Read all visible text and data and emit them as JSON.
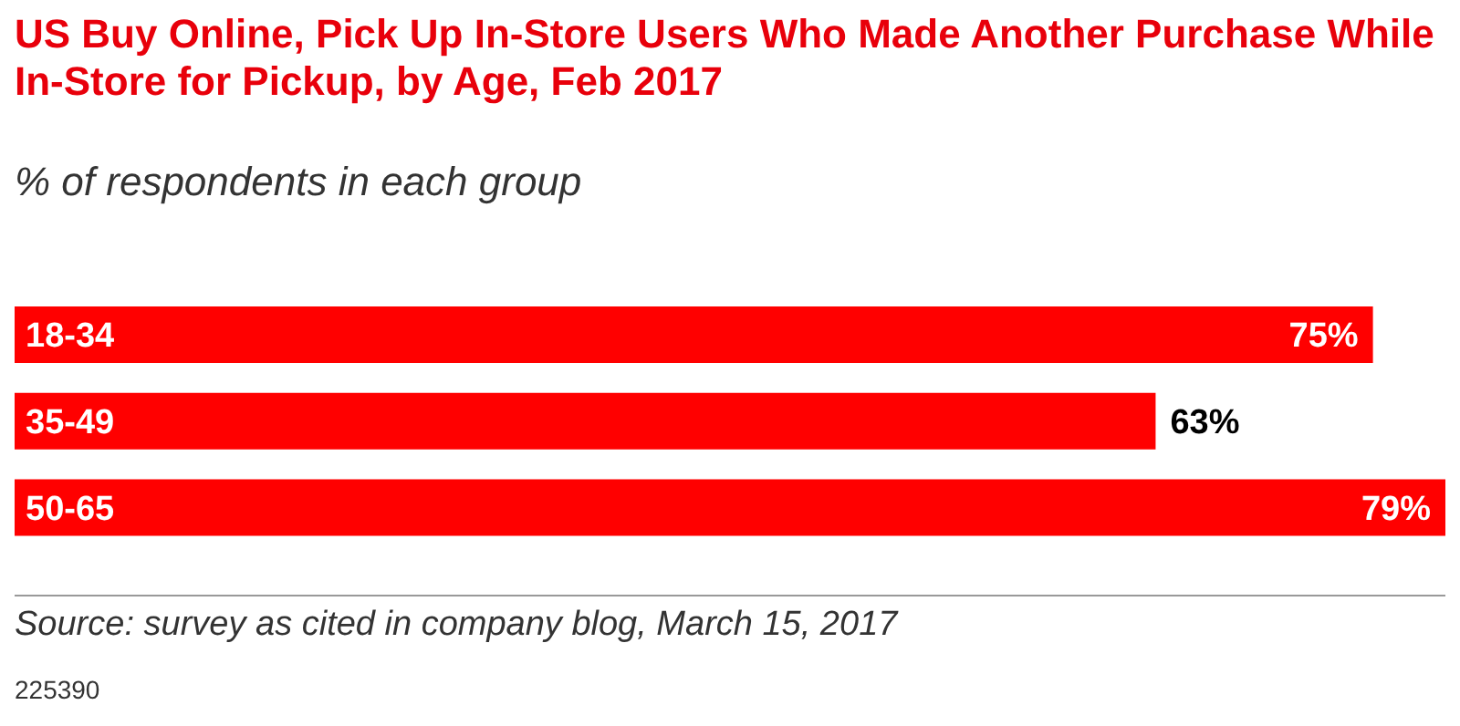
{
  "chart_data": {
    "type": "bar",
    "orientation": "horizontal",
    "title": "US Buy Online, Pick Up In-Store Users Who Made Another Purchase While In-Store for Pickup, by Age, Feb 2017",
    "subtitle": "% of respondents in each group",
    "categories": [
      "18-34",
      "35-49",
      "50-65"
    ],
    "values": [
      75,
      63,
      79
    ],
    "value_labels": [
      "75%",
      "63%",
      "79%"
    ],
    "color": "#ff0000",
    "annotations": [
      "Source: survey as cited in company blog, March 15, 2017",
      "225390"
    ]
  }
}
